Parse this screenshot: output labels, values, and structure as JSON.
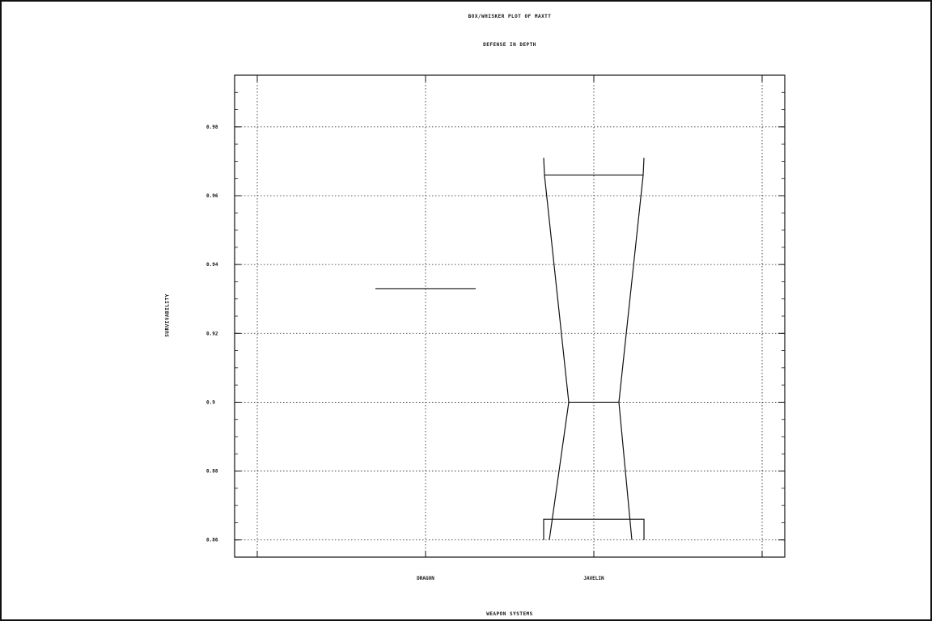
{
  "chart_data": {
    "type": "box",
    "title": "BOX/WHISKER PLOT OF MAXTT",
    "subtitle": "DEFENSE IN DEPTH",
    "xlabel": "WEAPON SYSTEMS",
    "ylabel": "SURVIVABILITY",
    "categories": [
      "DRAGON",
      "JAVELIN"
    ],
    "ylim": [
      0.855,
      0.995
    ],
    "yticks": [
      0.86,
      0.88,
      0.9,
      0.92,
      0.94,
      0.96,
      0.98
    ],
    "ytick_labels": [
      "0.86",
      "0.88",
      "0.9",
      "0.92",
      "0.94",
      "0.96",
      "0.98"
    ],
    "grid": true,
    "boxes": [
      {
        "category": "DRAGON",
        "min": 0.933,
        "q1": 0.933,
        "median": 0.933,
        "q3": 0.933,
        "max": 0.933
      },
      {
        "category": "JAVELIN",
        "min": 0.86,
        "q1": 0.866,
        "median": 0.9,
        "q3": 0.966,
        "max": 0.971
      }
    ]
  }
}
